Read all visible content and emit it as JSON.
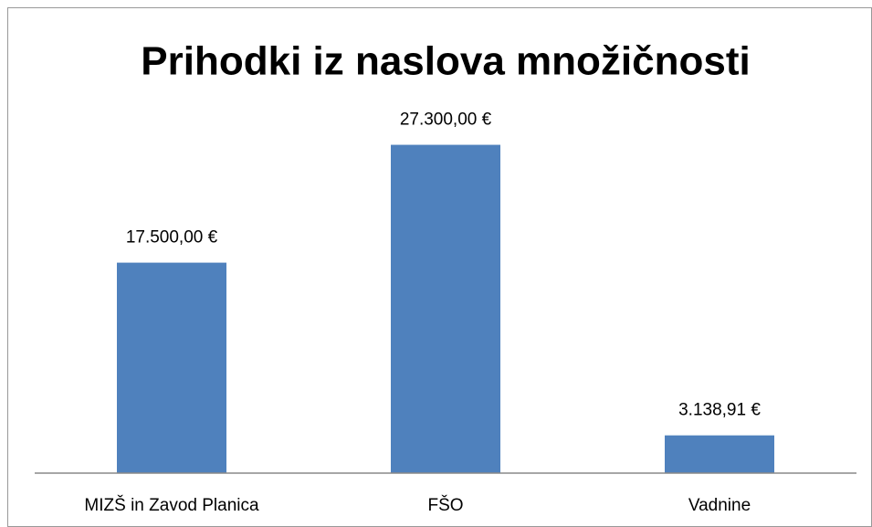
{
  "chart_data": {
    "type": "bar",
    "title": "Prihodki iz naslova množičnosti",
    "categories": [
      "MIZŠ in Zavod Planica",
      "FŠO",
      "Vadnine"
    ],
    "values": [
      17500,
      27300,
      3138.91
    ],
    "value_labels": [
      "17.500,00 €",
      "27.300,00 €",
      "3.138,91 €"
    ],
    "color": "#4f81bd",
    "ylim": [
      0,
      30000
    ]
  }
}
